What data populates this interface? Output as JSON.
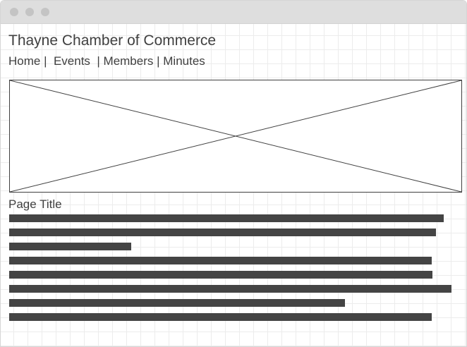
{
  "site": {
    "title": "Thayne Chamber of Commerce"
  },
  "nav": {
    "home": "Home",
    "sep1": " |  ",
    "events": "Events",
    "sep2": "  | ",
    "members": "Members",
    "sep3": " | ",
    "minutes": "Minutes"
  },
  "hero": {
    "icon": "image-placeholder-icon"
  },
  "content": {
    "page_title": "Page Title",
    "text_lines": [
      0.962,
      0.945,
      0.27,
      0.936,
      0.938,
      0.98,
      0.744,
      0.936
    ]
  },
  "colors": {
    "text": "#404040",
    "bar": "#444444",
    "titlebar": "#dedede"
  }
}
